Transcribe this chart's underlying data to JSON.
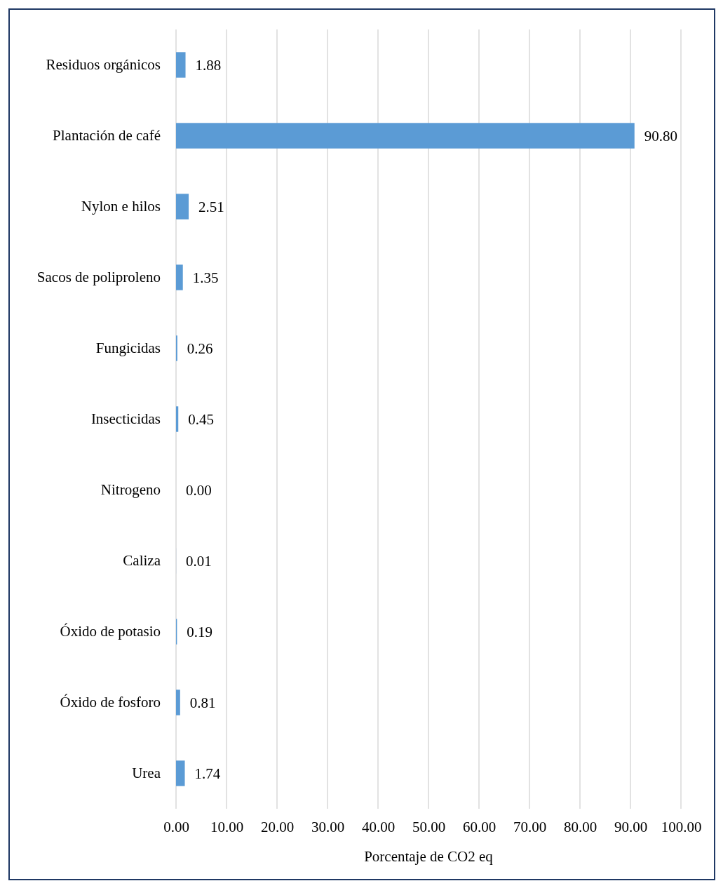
{
  "chart_data": {
    "type": "bar",
    "orientation": "horizontal",
    "xlabel": "Porcentaje de CO2 eq",
    "categories": [
      "Residuos orgánicos",
      "Plantación de café",
      "Nylon e hilos",
      "Sacos de poliproleno",
      "Fungicidas",
      "Insecticidas",
      "Nitrogeno",
      "Caliza",
      "Óxido de potasio",
      "Óxido de fosforo",
      "Urea"
    ],
    "values": [
      1.88,
      90.8,
      2.51,
      1.35,
      0.26,
      0.45,
      0.0,
      0.01,
      0.19,
      0.81,
      1.74
    ],
    "value_labels": [
      "1.88",
      "90.80",
      "2.51",
      "1.35",
      "0.26",
      "0.45",
      "0.00",
      "0.01",
      "0.19",
      "0.81",
      "1.74"
    ],
    "color": "#5b9bd5",
    "xlim": [
      0,
      100
    ],
    "xticks": [
      {
        "value": 0,
        "label": "0.00"
      },
      {
        "value": 10,
        "label": "10.00"
      },
      {
        "value": 20,
        "label": "20.00"
      },
      {
        "value": 30,
        "label": "30.00"
      },
      {
        "value": 40,
        "label": "40.00"
      },
      {
        "value": 50,
        "label": "50.00"
      },
      {
        "value": 60,
        "label": "60.00"
      },
      {
        "value": 70,
        "label": "70.00"
      },
      {
        "value": 80,
        "label": "80.00"
      },
      {
        "value": 90,
        "label": "90.00"
      },
      {
        "value": 100,
        "label": "100.00"
      }
    ],
    "grid": "x"
  }
}
